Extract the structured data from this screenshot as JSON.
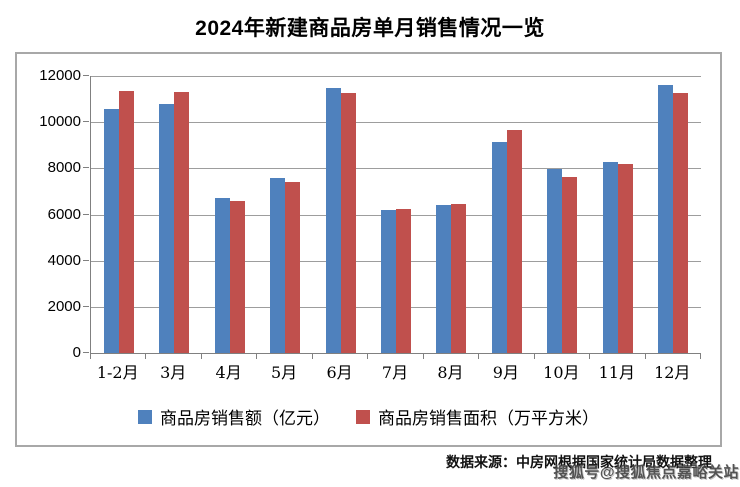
{
  "title": "2024年新建商品房单月销售情况一览",
  "source_note": "数据来源：中房网根据国家统计局数据整理",
  "watermark": "搜狐号@搜狐焦点嘉峪关站",
  "colors": {
    "sales_amount": "#4F81BD",
    "sales_area": "#C0504D",
    "gridline": "#9d9d9d",
    "axis": "#808080",
    "frame_border": "#a8a8a8"
  },
  "chart_data": {
    "type": "bar",
    "title": "2024年新建商品房单月销售情况一览",
    "categories": [
      "1-2月",
      "3月",
      "4月",
      "5月",
      "6月",
      "7月",
      "8月",
      "9月",
      "10月",
      "11月",
      "12月"
    ],
    "series": [
      {
        "name": "商品房销售额（亿元）",
        "color": "#4F81BD",
        "values": [
          10566,
          10789,
          6712,
          7598,
          11468,
          6197,
          6393,
          9157,
          7975,
          8270,
          11625
        ]
      },
      {
        "name": "商品房销售面积（万平方米）",
        "color": "#C0504D",
        "values": [
          11369,
          11299,
          6584,
          7390,
          11274,
          6233,
          6453,
          9682,
          7646,
          8188,
          11267
        ]
      }
    ],
    "xlabel": "",
    "ylabel": "",
    "ylim": [
      0,
      12000
    ],
    "yticks": [
      0,
      2000,
      4000,
      6000,
      8000,
      10000,
      12000
    ],
    "grid": true,
    "legend_position": "bottom"
  }
}
